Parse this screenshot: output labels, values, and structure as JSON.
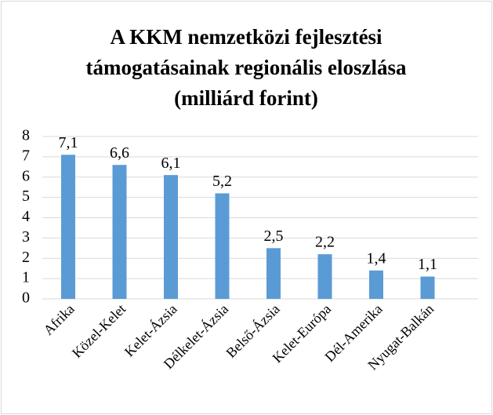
{
  "chart_data": {
    "type": "bar",
    "title": [
      "A KKM nemzetközi fejlesztési",
      "támogatásainak regionális eloszlása",
      "(milliárd forint)"
    ],
    "categories": [
      "Afrika",
      "Közel-Kelet",
      "Kelet-Ázsia",
      "Délkelet-Ázsia",
      "Belső-Ázsia",
      "Kelet-Európa",
      "Dél-Amerika",
      "Nyugat-Balkán"
    ],
    "values": [
      7.1,
      6.6,
      6.1,
      5.2,
      2.5,
      2.2,
      1.4,
      1.1
    ],
    "value_labels": [
      "7,1",
      "6,6",
      "6,1",
      "5,2",
      "2,5",
      "2,2",
      "1,4",
      "1,1"
    ],
    "color": "#5b9bd5",
    "ylim": [
      0,
      8
    ],
    "yticks": [
      0,
      1,
      2,
      3,
      4,
      5,
      6,
      7,
      8
    ],
    "grid": true
  }
}
